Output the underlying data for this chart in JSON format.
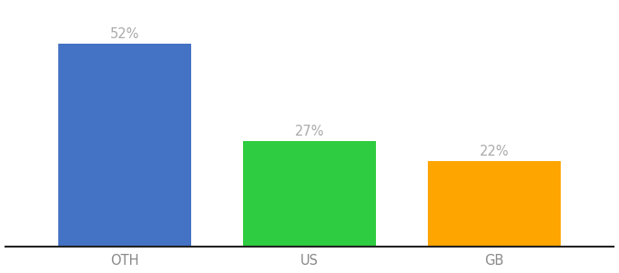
{
  "categories": [
    "OTH",
    "US",
    "GB"
  ],
  "values": [
    52,
    27,
    22
  ],
  "bar_colors": [
    "#4472C4",
    "#2ECC40",
    "#FFA500"
  ],
  "value_labels": [
    "52%",
    "27%",
    "22%"
  ],
  "background_color": "#ffffff",
  "ylim": [
    0,
    62
  ],
  "bar_width": 0.72,
  "label_fontsize": 10.5,
  "tick_fontsize": 10.5,
  "label_color": "#aaaaaa"
}
